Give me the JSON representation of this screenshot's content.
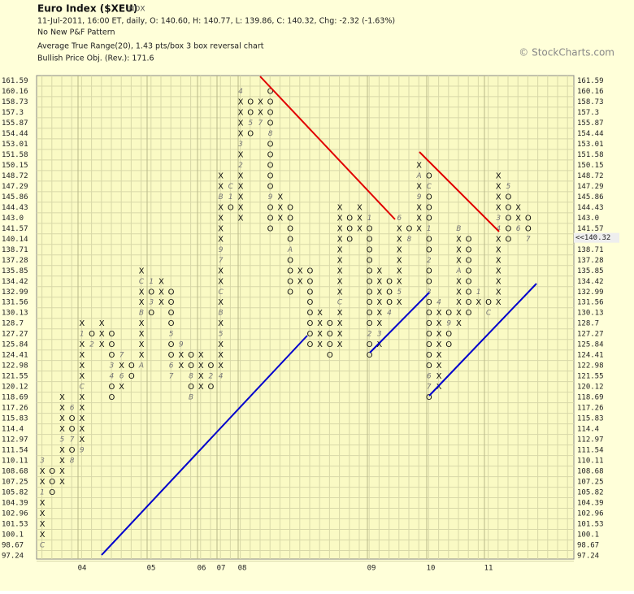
{
  "chart_data": {
    "type": "pointfigure",
    "title": "Euro Index ($XEU)",
    "exchange": "INDX",
    "info_lines": [
      "11-Jul-2011, 16:00 ET, daily, O: 140.60, H: 140.77, L: 139.86, C: 140.32, Chg: -2.32 (-1.63%)",
      "No New P&F Pattern",
      "Average True Range(20), 1.43 pts/box 3 box reversal chart",
      "Bullish Price Obj. (Rev.): 171.6"
    ],
    "watermark": "© StockCharts.com",
    "box_size": 1.43,
    "ylim": [
      96.8,
      162.3
    ],
    "yticks": [
      161.59,
      160.16,
      158.73,
      157.3,
      155.87,
      154.44,
      153.01,
      151.58,
      150.15,
      148.72,
      147.29,
      145.86,
      144.43,
      {
        "value": 143,
        "label": "143.0"
      },
      141.57,
      140.14,
      138.71,
      137.28,
      135.85,
      134.42,
      132.99,
      131.56,
      130.13,
      128.7,
      127.27,
      125.84,
      124.41,
      122.98,
      121.55,
      120.12,
      118.69,
      117.26,
      115.83,
      114.4,
      112.97,
      111.54,
      110.11,
      108.68,
      107.25,
      105.82,
      104.39,
      102.96,
      101.53,
      100.1,
      98.67,
      97.24
    ],
    "y2ticks": [
      161.59,
      160.16,
      158.73,
      157.3,
      155.87,
      154.44,
      153.01,
      151.58,
      150.15,
      148.72,
      147.29,
      145.86,
      144.43,
      {
        "value": 143,
        "label": "143.0"
      },
      141.57,
      138.71,
      137.28,
      135.85,
      134.42,
      132.99,
      131.56,
      130.13,
      128.7,
      127.27,
      125.84,
      124.41,
      122.98,
      121.55,
      120.12,
      118.69,
      117.26,
      115.83,
      114.4,
      112.97,
      111.54,
      110.11,
      108.68,
      107.25,
      105.82,
      104.39,
      102.96,
      101.53,
      100.1,
      98.67,
      97.24
    ],
    "last_price": {
      "value": 140.32,
      "label": "<<140.32"
    },
    "x_labels": [
      "04",
      "05",
      "06",
      "07",
      "08",
      "09",
      "10",
      "11"
    ],
    "grid": true,
    "columns": [
      {
        "type": "X",
        "low": 98.67,
        "high": 110.11,
        "markers": [
          {
            "level": 98.67,
            "label": "C"
          },
          {
            "level": 105.82,
            "label": "1"
          },
          {
            "level": 110.11,
            "label": "3"
          }
        ]
      },
      {
        "type": "O",
        "low": 105.82,
        "high": 108.68,
        "markers": []
      },
      {
        "type": "X",
        "low": 107.25,
        "high": 118.69,
        "markers": [
          {
            "level": 112.97,
            "label": "5"
          }
        ]
      },
      {
        "type": "O",
        "low": 110.11,
        "high": 117.26,
        "markers": [
          {
            "level": 117.26,
            "label": "6"
          },
          {
            "level": 112.97,
            "label": "7"
          },
          {
            "level": 110.11,
            "label": "8"
          }
        ]
      },
      {
        "type": "X",
        "low": 111.54,
        "high": 128.7,
        "markers": [
          {
            "level": 111.54,
            "label": "9"
          },
          {
            "level": 120.12,
            "label": "C"
          },
          {
            "level": 127.27,
            "label": "1"
          }
        ]
      },
      {
        "type": "O",
        "low": 125.84,
        "high": 127.27,
        "markers": [
          {
            "level": 125.84,
            "label": "2"
          }
        ]
      },
      {
        "type": "X",
        "low": 125.84,
        "high": 128.7,
        "markers": []
      },
      {
        "type": "O",
        "low": 118.69,
        "high": 127.27,
        "markers": [
          {
            "level": 122.98,
            "label": "3"
          },
          {
            "level": 121.55,
            "label": "4"
          }
        ]
      },
      {
        "type": "X",
        "low": 120.12,
        "high": 124.41,
        "markers": [
          {
            "level": 121.55,
            "label": "6"
          },
          {
            "level": 124.41,
            "label": "7"
          }
        ]
      },
      {
        "type": "O",
        "low": 121.55,
        "high": 122.98,
        "markers": []
      },
      {
        "type": "X",
        "low": 122.98,
        "high": 135.85,
        "markers": [
          {
            "level": 122.98,
            "label": "A"
          },
          {
            "level": 130.13,
            "label": "B"
          },
          {
            "level": 134.42,
            "label": "C"
          }
        ]
      },
      {
        "type": "O",
        "low": 130.13,
        "high": 134.42,
        "markers": [
          {
            "level": 134.42,
            "label": "1"
          },
          {
            "level": 131.56,
            "label": "3"
          }
        ]
      },
      {
        "type": "X",
        "low": 131.56,
        "high": 134.42,
        "markers": []
      },
      {
        "type": "O",
        "low": 121.55,
        "high": 132.99,
        "markers": [
          {
            "level": 127.27,
            "label": "5"
          },
          {
            "level": 122.98,
            "label": "6"
          },
          {
            "level": 121.55,
            "label": "7"
          }
        ]
      },
      {
        "type": "X",
        "low": 122.98,
        "high": 125.84,
        "markers": [
          {
            "level": 125.84,
            "label": "9"
          }
        ]
      },
      {
        "type": "O",
        "low": 118.69,
        "high": 124.41,
        "markers": [
          {
            "level": 121.55,
            "label": "8"
          },
          {
            "level": 118.69,
            "label": "B"
          }
        ]
      },
      {
        "type": "X",
        "low": 120.12,
        "high": 124.41,
        "markers": []
      },
      {
        "type": "O",
        "low": 120.12,
        "high": 122.98,
        "markers": [
          {
            "level": 121.55,
            "label": "2"
          }
        ]
      },
      {
        "type": "X",
        "low": 121.55,
        "high": 148.72,
        "markers": [
          {
            "level": 121.55,
            "label": "4"
          },
          {
            "level": 127.27,
            "label": "5"
          },
          {
            "level": 130.13,
            "label": "B"
          },
          {
            "level": 132.99,
            "label": "C"
          },
          {
            "level": 137.28,
            "label": "7"
          },
          {
            "level": 138.71,
            "label": "9"
          },
          {
            "level": 145.86,
            "label": "B"
          }
        ]
      },
      {
        "type": "O",
        "low": 144.43,
        "high": 147.29,
        "markers": [
          {
            "level": 147.29,
            "label": "C"
          },
          {
            "level": 145.86,
            "label": "1"
          }
        ]
      },
      {
        "type": "X",
        "low": 143.0,
        "high": 160.16,
        "markers": [
          {
            "level": 150.15,
            "label": "2"
          },
          {
            "level": 153.01,
            "label": "3"
          },
          {
            "level": 160.16,
            "label": "4"
          }
        ]
      },
      {
        "type": "O",
        "low": 154.44,
        "high": 158.73,
        "markers": [
          {
            "level": 155.87,
            "label": "5"
          }
        ]
      },
      {
        "type": "X",
        "low": 155.87,
        "high": 158.73,
        "markers": [
          {
            "level": 155.87,
            "label": "7"
          }
        ]
      },
      {
        "type": "O",
        "low": 141.57,
        "high": 160.16,
        "markers": [
          {
            "level": 154.44,
            "label": "8"
          },
          {
            "level": 145.86,
            "label": "9"
          }
        ]
      },
      {
        "type": "X",
        "low": 143.0,
        "high": 145.86,
        "markers": []
      },
      {
        "type": "O",
        "low": 132.99,
        "high": 144.43,
        "markers": [
          {
            "level": 138.71,
            "label": "A"
          }
        ]
      },
      {
        "type": "X",
        "low": 134.42,
        "high": 135.85,
        "markers": []
      },
      {
        "type": "O",
        "low": 125.84,
        "high": 135.85,
        "markers": []
      },
      {
        "type": "X",
        "low": 125.84,
        "high": 130.13,
        "markers": []
      },
      {
        "type": "O",
        "low": 124.41,
        "high": 128.7,
        "markers": []
      },
      {
        "type": "X",
        "low": 125.84,
        "high": 144.43,
        "markers": [
          {
            "level": 131.56,
            "label": "C"
          }
        ]
      },
      {
        "type": "O",
        "low": 140.14,
        "high": 143.0,
        "markers": []
      },
      {
        "type": "X",
        "low": 141.57,
        "high": 144.43,
        "markers": []
      },
      {
        "type": "O",
        "low": 124.41,
        "high": 143.0,
        "markers": [
          {
            "level": 143.0,
            "label": "1"
          },
          {
            "level": 127.27,
            "label": "2"
          }
        ]
      },
      {
        "type": "X",
        "low": 125.84,
        "high": 135.85,
        "markers": [
          {
            "level": 127.27,
            "label": "3"
          }
        ]
      },
      {
        "type": "O",
        "low": 130.13,
        "high": 134.42,
        "markers": [
          {
            "level": 130.13,
            "label": "4"
          }
        ]
      },
      {
        "type": "X",
        "low": 131.56,
        "high": 143.0,
        "markers": [
          {
            "level": 132.99,
            "label": "5"
          },
          {
            "level": 143.0,
            "label": "6"
          }
        ]
      },
      {
        "type": "O",
        "low": 140.14,
        "high": 141.57,
        "markers": [
          {
            "level": 140.14,
            "label": "8"
          }
        ]
      },
      {
        "type": "X",
        "low": 141.57,
        "high": 150.15,
        "markers": [
          {
            "level": 145.86,
            "label": "9"
          },
          {
            "level": 148.72,
            "label": "A"
          }
        ]
      },
      {
        "type": "O",
        "low": 118.69,
        "high": 148.72,
        "markers": [
          {
            "level": 147.29,
            "label": "C"
          },
          {
            "level": 141.57,
            "label": "1"
          },
          {
            "level": 137.28,
            "label": "2"
          },
          {
            "level": 132.99,
            "label": "3"
          },
          {
            "level": 121.55,
            "label": "6"
          },
          {
            "level": 120.12,
            "label": "7"
          }
        ]
      },
      {
        "type": "X",
        "low": 120.12,
        "high": 131.56,
        "markers": [
          {
            "level": 131.56,
            "label": "4"
          }
        ]
      },
      {
        "type": "O",
        "low": 125.84,
        "high": 130.13,
        "markers": [
          {
            "level": 128.7,
            "label": "9"
          }
        ]
      },
      {
        "type": "X",
        "low": 128.7,
        "high": 141.57,
        "markers": [
          {
            "level": 135.85,
            "label": "A"
          },
          {
            "level": 141.57,
            "label": "B"
          }
        ]
      },
      {
        "type": "O",
        "low": 130.13,
        "high": 140.14,
        "markers": []
      },
      {
        "type": "X",
        "low": 131.56,
        "high": 132.99,
        "markers": [
          {
            "level": 132.99,
            "label": "1"
          }
        ]
      },
      {
        "type": "O",
        "low": 130.13,
        "high": 131.56,
        "markers": [
          {
            "level": 130.13,
            "label": "C"
          }
        ]
      },
      {
        "type": "X",
        "low": 131.56,
        "high": 148.72,
        "markers": [
          {
            "level": 141.57,
            "label": "4"
          },
          {
            "level": 143.0,
            "label": "3"
          }
        ]
      },
      {
        "type": "O",
        "low": 140.14,
        "high": 147.29,
        "markers": [
          {
            "level": 147.29,
            "label": "5"
          }
        ]
      },
      {
        "type": "X",
        "low": 141.57,
        "high": 144.43,
        "markers": [
          {
            "level": 141.57,
            "label": "6"
          }
        ]
      },
      {
        "type": "O",
        "low": 140.14,
        "high": 143.0,
        "markers": [
          {
            "level": 140.14,
            "label": "7",
            "color": "#e00000"
          }
        ]
      }
    ]
  }
}
